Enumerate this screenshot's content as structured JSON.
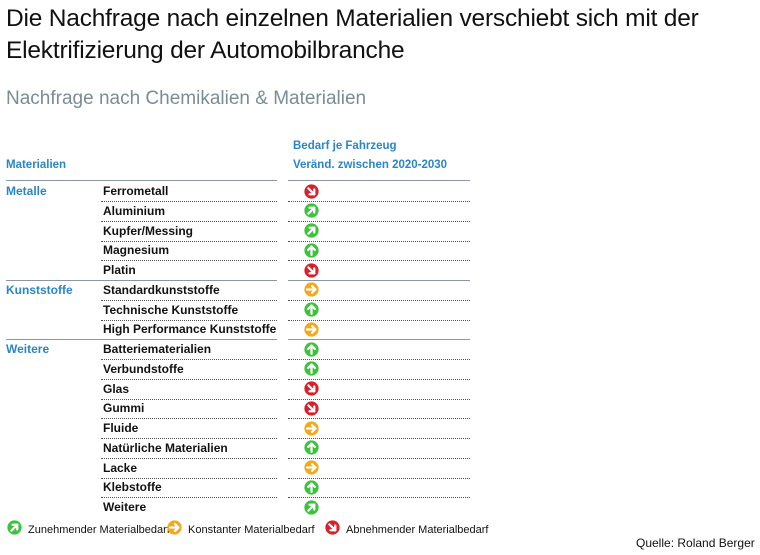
{
  "title": "Die Nachfrage nach einzelnen Materialien verschiebt sich mit der Elektrifizierung der Automobilbranche",
  "subtitle": "Nachfrage nach Chemikalien & Materialien",
  "table": {
    "left_header": "Materialien",
    "right_header_line1": "Bedarf je Fahrzeug",
    "right_header_line2": "Veränd. zwischen 2020-2030",
    "rows": [
      {
        "group": "Metalle",
        "material": "Ferrometall",
        "trend": "decrease"
      },
      {
        "group": "",
        "material": "Aluminium",
        "trend": "increase"
      },
      {
        "group": "",
        "material": "Kupfer/Messing",
        "trend": "increase"
      },
      {
        "group": "",
        "material": "Magnesium",
        "trend": "strong-increase"
      },
      {
        "group": "",
        "material": "Platin",
        "trend": "decrease"
      },
      {
        "group": "Kunststoffe",
        "material": "Standardkunststoffe",
        "trend": "constant"
      },
      {
        "group": "",
        "material": "Technische Kunststoffe",
        "trend": "strong-increase"
      },
      {
        "group": "",
        "material": "High Performance Kunststoffe",
        "trend": "constant"
      },
      {
        "group": "Weitere",
        "material": "Batteriematerialien",
        "trend": "strong-increase"
      },
      {
        "group": "",
        "material": "Verbundstoffe",
        "trend": "strong-increase"
      },
      {
        "group": "",
        "material": "Glas",
        "trend": "decrease"
      },
      {
        "group": "",
        "material": "Gummi",
        "trend": "decrease"
      },
      {
        "group": "",
        "material": "Fluide",
        "trend": "constant"
      },
      {
        "group": "",
        "material": "Natürliche Materialien",
        "trend": "strong-increase"
      },
      {
        "group": "",
        "material": "Lacke",
        "trend": "constant"
      },
      {
        "group": "",
        "material": "Klebstoffe",
        "trend": "strong-increase"
      },
      {
        "group": "",
        "material": "Weitere",
        "trend": "increase"
      }
    ]
  },
  "legend": {
    "increase": "Zunehmender Materialbedarf",
    "constant": "Konstanter Materialbedarf",
    "decrease": "Abnehmender Materialbedarf"
  },
  "colors": {
    "increase": "#3cc23c",
    "constant": "#f2a91e",
    "decrease": "#d8202a",
    "accent": "#2a86c4"
  },
  "source": "Quelle: Roland Berger"
}
